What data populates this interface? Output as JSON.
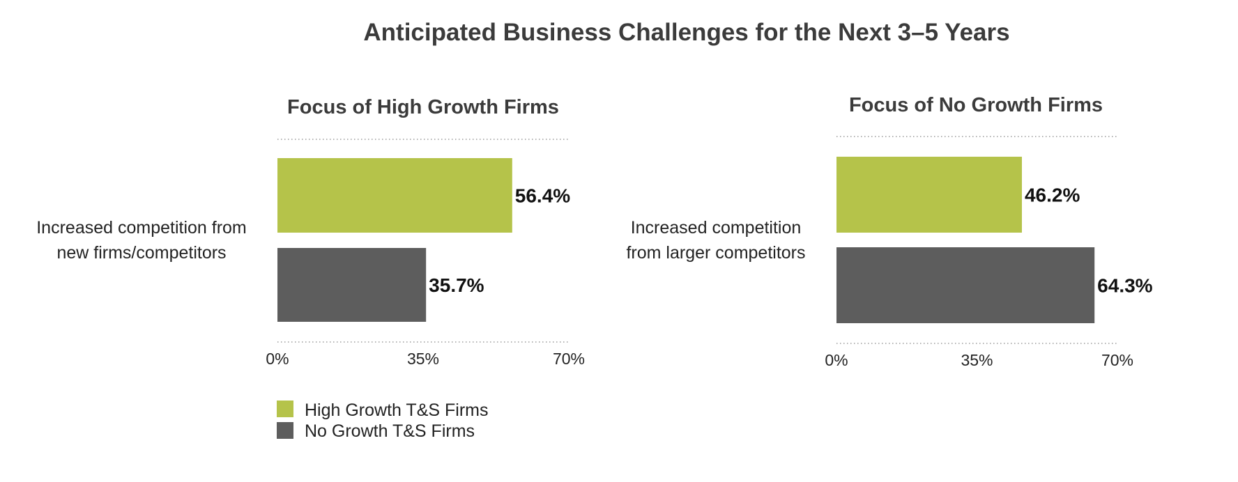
{
  "chart_data": {
    "title": "Anticipated Business Challenges for the Next 3–5 Years",
    "panels": [
      {
        "type": "bar",
        "orientation": "horizontal",
        "subtitle": "Focus of High Growth Firms",
        "category": [
          "Increased competition from",
          "new firms/competitors"
        ],
        "series": [
          {
            "name": "High Growth T&S Firms",
            "value": 56.4,
            "label": "56.4%"
          },
          {
            "name": "No Growth T&S Firms",
            "value": 35.7,
            "label": "35.7%"
          }
        ],
        "xlim": [
          0,
          70
        ],
        "ticks": [
          0,
          35,
          70
        ],
        "tick_labels": [
          "0%",
          "35%",
          "70%"
        ]
      },
      {
        "type": "bar",
        "orientation": "horizontal",
        "subtitle": "Focus of No Growth Firms",
        "category": [
          "Increased competition",
          "from larger competitors"
        ],
        "series": [
          {
            "name": "High Growth T&S Firms",
            "value": 46.2,
            "label": "46.2%"
          },
          {
            "name": "No Growth T&S Firms",
            "value": 64.3,
            "label": "64.3%"
          }
        ],
        "xlim": [
          0,
          70
        ],
        "ticks": [
          0,
          35,
          70
        ],
        "tick_labels": [
          "0%",
          "35%",
          "70%"
        ]
      }
    ],
    "legend": {
      "placement": "bottom-left",
      "items": [
        {
          "label": "High Growth T&S Firms",
          "color": "#b5c34a"
        },
        {
          "label": "No Growth T&S Firms",
          "color": "#5d5d5d"
        }
      ]
    },
    "colors": {
      "high_growth": "#b5c34a",
      "no_growth": "#5d5d5d"
    }
  }
}
